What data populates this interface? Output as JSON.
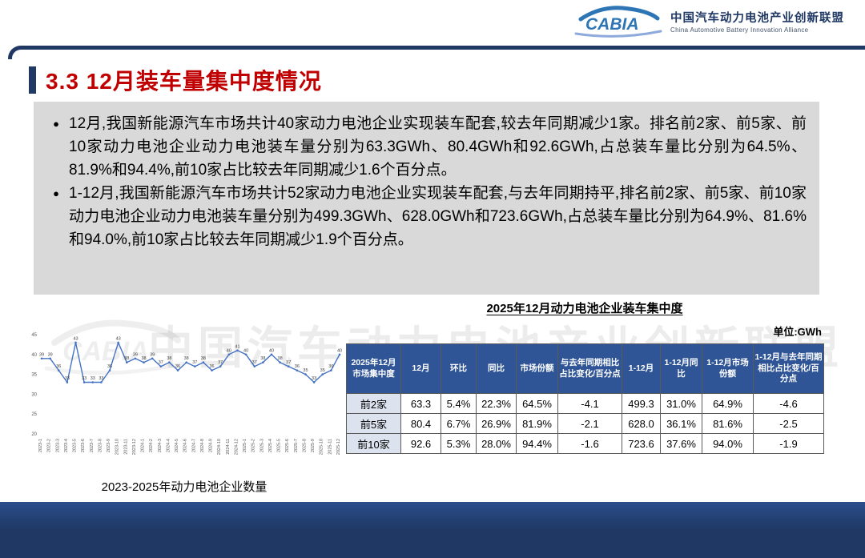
{
  "header": {
    "logo_text": "CABIA",
    "org_cn": "中国汽车动力电池产业创新联盟",
    "org_en": "China Automotive Battery Innovation Alliance"
  },
  "title": "3.3 12月装车量集中度情况",
  "bullet_char": "●",
  "bullets": [
    "12月,我国新能源汽车市场共计40家动力电池企业实现装车配套,较去年同期减少1家。排名前2家、前5家、前10家动力电池企业动力电池装车量分别为63.3GWh、80.4GWh和92.6GWh,占总装车量比分别为64.5%、81.9%和94.4%,前10家占比较去年同期减少1.6个百分点。",
    "1-12月,我国新能源汽车市场共计52家动力电池企业实现装车配套,与去年同期持平,排名前2家、前5家、前10家动力电池企业动力电池装车量分别为499.3GWh、628.0GWh和723.6GWh,占总装车量比分别为64.9%、81.6%和94.0%,前10家占比较去年同期减少1.9个百分点。"
  ],
  "watermark": "中国汽车动力电池产业创新联盟",
  "table": {
    "title": "2025年12月动力电池企业装车集中度",
    "unit": "单位:GWh",
    "headers": [
      "2025年12月市场集中度",
      "12月",
      "环比",
      "同比",
      "市场份额",
      "与去年同期相比占比变化/百分点",
      "1-12月",
      "1-12月同比",
      "1-12月市场份额",
      "1-12月与去年同期相比占比变化/百分点"
    ],
    "rows": [
      [
        "前2家",
        "63.3",
        "5.4%",
        "22.3%",
        "64.5%",
        "-4.1",
        "499.3",
        "31.0%",
        "64.9%",
        "-4.6"
      ],
      [
        "前5家",
        "80.4",
        "6.7%",
        "26.9%",
        "81.9%",
        "-2.1",
        "628.0",
        "36.1%",
        "81.6%",
        "-2.5"
      ],
      [
        "前10家",
        "92.6",
        "5.3%",
        "28.0%",
        "94.4%",
        "-1.6",
        "723.6",
        "37.6%",
        "94.0%",
        "-1.9"
      ]
    ]
  },
  "chart_data": {
    "type": "line",
    "title": "2023-2025年动力电池企业数量",
    "x": [
      "2023-1",
      "2023-2",
      "2023-3",
      "2023-4",
      "2023-5",
      "2023-6",
      "2023-7",
      "2023-8",
      "2023-9",
      "2023-10",
      "2023-11",
      "2023-12",
      "2024-1",
      "2024-2",
      "2024-3",
      "2024-4",
      "2024-5",
      "2024-6",
      "2024-7",
      "2024-8",
      "2024-9",
      "2024-10",
      "2024-11",
      "2024-12",
      "2025-1",
      "2025-2",
      "2025-3",
      "2025-4",
      "2025-5",
      "2025-6",
      "2025-7",
      "2025-8",
      "2025-9",
      "2025-10",
      "2025-11",
      "2025-12"
    ],
    "values": [
      39,
      39,
      36,
      33,
      43,
      33,
      33,
      33,
      36,
      43,
      38,
      39,
      38,
      39,
      37,
      38,
      36,
      38,
      37,
      38,
      36,
      37,
      40,
      41,
      40,
      37,
      38,
      40,
      38,
      37,
      36,
      35,
      33,
      35,
      36,
      40
    ],
    "ylim": [
      20,
      45
    ],
    "yticks": [
      20,
      25,
      30,
      35,
      40,
      45
    ],
    "line_color": "#4472C4",
    "legend_position": "none",
    "grid": false
  },
  "colors": {
    "title_red": "#C00000",
    "accent_navy": "#1F3864",
    "table_header_blue": "#2F5597",
    "row_header_bg": "#DCE3EF",
    "bullet_box_gray": "#D9D9D9",
    "chart_line": "#4472C4",
    "footer_navy": "#1F3864"
  }
}
